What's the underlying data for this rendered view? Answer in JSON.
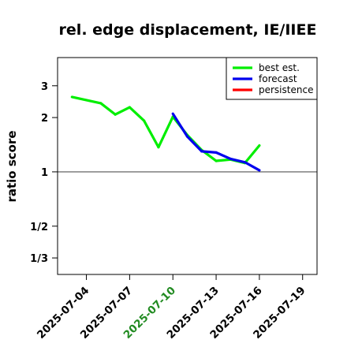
{
  "chart_data": {
    "type": "line",
    "title": "rel. edge displacement, IE/IIEE",
    "ylabel": "ratio score",
    "xlabel": "",
    "y_scale": "log",
    "ylim": [
      0.27,
      4.3
    ],
    "y_ticks": [
      {
        "value": 3,
        "label": "3"
      },
      {
        "value": 2,
        "label": "2"
      },
      {
        "value": 1,
        "label": "1"
      },
      {
        "value": 0.5,
        "label": "1/2"
      },
      {
        "value": 0.3333,
        "label": "1/3"
      }
    ],
    "x_range": [
      "2025-07-02",
      "2025-07-20"
    ],
    "x_ticks": [
      {
        "date": "2025-07-04",
        "label": "2025-07-04",
        "color": "#000000"
      },
      {
        "date": "2025-07-07",
        "label": "2025-07-07",
        "color": "#000000"
      },
      {
        "date": "2025-07-10",
        "label": "2025-07-10",
        "color": "#228B22"
      },
      {
        "date": "2025-07-13",
        "label": "2025-07-13",
        "color": "#000000"
      },
      {
        "date": "2025-07-16",
        "label": "2025-07-16",
        "color": "#000000"
      },
      {
        "date": "2025-07-19",
        "label": "2025-07-19",
        "color": "#000000"
      }
    ],
    "reference_line": 1,
    "legend_position": "top-right",
    "series": [
      {
        "name": "best est.",
        "color": "#00ee00",
        "points": [
          [
            "2025-07-03",
            2.6,
            "thin"
          ],
          [
            "2025-07-05",
            2.4,
            "thick"
          ],
          [
            "2025-07-06",
            2.08,
            "thick"
          ],
          [
            "2025-07-07",
            2.28,
            "thick"
          ],
          [
            "2025-07-08",
            1.92,
            "thick"
          ],
          [
            "2025-07-09",
            1.37,
            "thick"
          ],
          [
            "2025-07-10",
            2.02,
            "thick"
          ],
          [
            "2025-07-11",
            1.6,
            "thick"
          ],
          [
            "2025-07-12",
            1.32,
            "thick"
          ],
          [
            "2025-07-13",
            1.15,
            "thick"
          ],
          [
            "2025-07-14",
            1.17,
            "thick"
          ],
          [
            "2025-07-15",
            1.12,
            "thick"
          ],
          [
            "2025-07-16",
            1.4,
            "thick"
          ]
        ]
      },
      {
        "name": "forecast",
        "color": "#0000ee",
        "points": [
          [
            "2025-07-10",
            2.1
          ],
          [
            "2025-07-11",
            1.57
          ],
          [
            "2025-07-12",
            1.3
          ],
          [
            "2025-07-13",
            1.28
          ],
          [
            "2025-07-14",
            1.18
          ],
          [
            "2025-07-15",
            1.13
          ],
          [
            "2025-07-16",
            1.02
          ]
        ]
      },
      {
        "name": "persistence",
        "color": "#ff0000",
        "points": []
      }
    ]
  }
}
